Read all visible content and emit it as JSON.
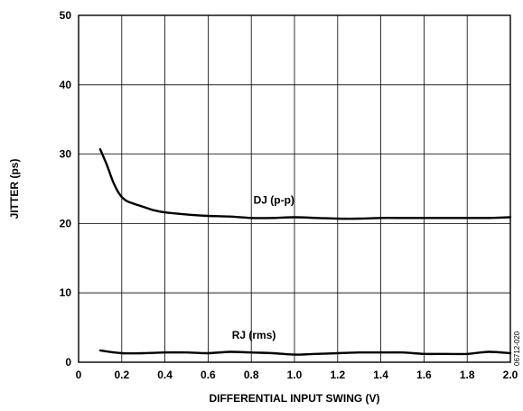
{
  "chart_data": {
    "type": "line",
    "title": "",
    "xlabel": "DIFFERENTIAL INPUT SWING (V)",
    "ylabel": "JITTER (ps)",
    "xlim": [
      0,
      2.0
    ],
    "ylim": [
      0,
      50
    ],
    "x_ticks": [
      "0",
      "0.2",
      "0.4",
      "0.6",
      "0.8",
      "1.0",
      "1.2",
      "1.4",
      "1.6",
      "1.8",
      "2.0"
    ],
    "y_ticks": [
      "0",
      "10",
      "20",
      "30",
      "40",
      "50"
    ],
    "grid": true,
    "figure_code": "06712-020",
    "series": [
      {
        "name": "DJ (p-p)",
        "x": [
          0.1,
          0.13,
          0.16,
          0.19,
          0.22,
          0.26,
          0.3,
          0.35,
          0.4,
          0.5,
          0.6,
          0.7,
          0.8,
          0.9,
          1.0,
          1.1,
          1.2,
          1.3,
          1.4,
          1.5,
          1.6,
          1.7,
          1.8,
          1.9,
          2.0
        ],
        "values": [
          30.7,
          28.5,
          26.0,
          24.2,
          23.3,
          22.8,
          22.4,
          21.9,
          21.6,
          21.3,
          21.1,
          21.0,
          20.8,
          20.8,
          20.9,
          20.8,
          20.7,
          20.7,
          20.8,
          20.8,
          20.8,
          20.8,
          20.8,
          20.8,
          20.9
        ]
      },
      {
        "name": "RJ (rms)",
        "x": [
          0.1,
          0.2,
          0.3,
          0.4,
          0.5,
          0.6,
          0.7,
          0.8,
          0.9,
          1.0,
          1.1,
          1.2,
          1.3,
          1.4,
          1.5,
          1.6,
          1.7,
          1.8,
          1.9,
          2.0
        ],
        "values": [
          1.7,
          1.3,
          1.3,
          1.4,
          1.4,
          1.3,
          1.5,
          1.4,
          1.3,
          1.1,
          1.2,
          1.3,
          1.4,
          1.4,
          1.4,
          1.2,
          1.2,
          1.2,
          1.5,
          1.3
        ]
      }
    ]
  }
}
